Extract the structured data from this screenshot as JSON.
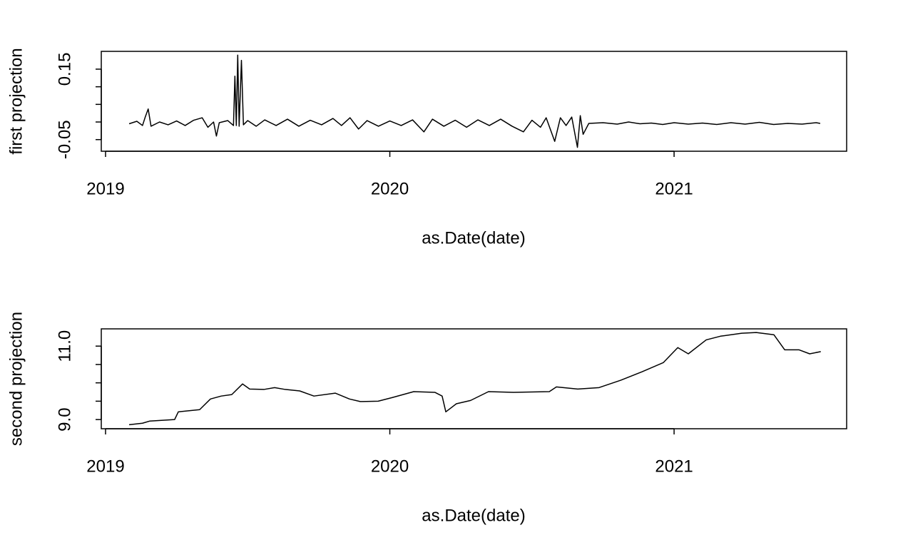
{
  "chart_data": [
    {
      "type": "line",
      "xlabel": "as.Date(date)",
      "ylabel": "first projection",
      "xlim": [
        2018.985,
        2021.607
      ],
      "xticks": [
        2019,
        2020,
        2021
      ],
      "ylim": [
        -0.083,
        0.2005
      ],
      "yticks": [
        -0.05,
        {
          "value": 0,
          "label": null
        },
        {
          "value": 0.05,
          "label": null
        },
        {
          "value": 0.1,
          "label": null
        },
        0.15
      ],
      "color": "#000000",
      "x": [
        2019.083,
        2019.11,
        2019.13,
        2019.14,
        2019.15,
        2019.16,
        2019.19,
        2019.22,
        2019.25,
        2019.28,
        2019.31,
        2019.34,
        2019.36,
        2019.38,
        2019.39,
        2019.4,
        2019.43,
        2019.45,
        2019.455,
        2019.46,
        2019.465,
        2019.47,
        2019.478,
        2019.485,
        2019.5,
        2019.53,
        2019.56,
        2019.6,
        2019.64,
        2019.68,
        2019.72,
        2019.76,
        2019.8,
        2019.83,
        2019.86,
        2019.89,
        2019.92,
        2019.96,
        2020.0,
        2020.04,
        2020.08,
        2020.12,
        2020.15,
        2020.19,
        2020.23,
        2020.27,
        2020.31,
        2020.35,
        2020.39,
        2020.43,
        2020.47,
        2020.5,
        2020.53,
        2020.55,
        2020.58,
        2020.6,
        2020.62,
        2020.64,
        2020.66,
        2020.67,
        2020.68,
        2020.7,
        2020.75,
        2020.8,
        2020.84,
        2020.88,
        2020.92,
        2020.96,
        2021.0,
        2021.05,
        2021.1,
        2021.15,
        2021.2,
        2021.25,
        2021.3,
        2021.35,
        2021.4,
        2021.45,
        2021.5,
        2021.514
      ],
      "values": [
        -0.005,
        0.002,
        -0.01,
        0.015,
        0.037,
        -0.012,
        0.0,
        -0.008,
        0.003,
        -0.01,
        0.005,
        0.012,
        -0.015,
        0.0,
        -0.04,
        -0.002,
        0.004,
        -0.01,
        0.13,
        -0.01,
        0.19,
        -0.012,
        0.175,
        -0.008,
        0.004,
        -0.012,
        0.006,
        -0.01,
        0.008,
        -0.012,
        0.005,
        -0.008,
        0.01,
        -0.01,
        0.012,
        -0.02,
        0.004,
        -0.012,
        0.003,
        -0.01,
        0.006,
        -0.028,
        0.008,
        -0.012,
        0.005,
        -0.015,
        0.006,
        -0.01,
        0.008,
        -0.012,
        -0.028,
        0.005,
        -0.015,
        0.012,
        -0.055,
        0.012,
        -0.01,
        0.014,
        -0.072,
        0.018,
        -0.035,
        -0.004,
        -0.002,
        -0.006,
        0.0,
        -0.005,
        -0.003,
        -0.007,
        -0.002,
        -0.006,
        -0.003,
        -0.007,
        -0.002,
        -0.006,
        -0.001,
        -0.007,
        -0.004,
        -0.006,
        -0.002,
        -0.004
      ]
    },
    {
      "type": "line",
      "xlabel": "as.Date(date)",
      "ylabel": "second projection",
      "xlim": [
        2018.985,
        2021.607
      ],
      "xticks": [
        2019,
        2020,
        2021
      ],
      "ylim": [
        8.75,
        11.47
      ],
      "yticks": [
        {
          "value": 9,
          "label": "9.0"
        },
        {
          "value": 9.5,
          "label": null
        },
        {
          "value": 10,
          "label": null
        },
        {
          "value": 10.5,
          "label": null
        },
        {
          "value": 11,
          "label": "11.0"
        }
      ],
      "color": "#000000",
      "x": [
        2019.083,
        2019.13,
        2019.156,
        2019.243,
        2019.256,
        2019.331,
        2019.369,
        2019.407,
        2019.444,
        2019.482,
        2019.507,
        2019.557,
        2019.595,
        2019.632,
        2019.683,
        2019.733,
        2019.808,
        2019.858,
        2019.896,
        2019.959,
        2020.009,
        2020.084,
        2020.159,
        2020.184,
        2020.197,
        2020.234,
        2020.284,
        2020.347,
        2020.435,
        2020.561,
        2020.586,
        2020.661,
        2020.736,
        2020.812,
        2020.887,
        2020.962,
        2021.013,
        2021.05,
        2021.113,
        2021.163,
        2021.238,
        2021.289,
        2021.351,
        2021.389,
        2021.439,
        2021.477,
        2021.516
      ],
      "values": [
        8.86,
        8.9,
        8.96,
        9.0,
        9.21,
        9.27,
        9.56,
        9.64,
        9.68,
        9.97,
        9.83,
        9.82,
        9.87,
        9.82,
        9.78,
        9.64,
        9.72,
        9.56,
        9.49,
        9.5,
        9.6,
        9.76,
        9.74,
        9.64,
        9.21,
        9.43,
        9.52,
        9.76,
        9.74,
        9.76,
        9.89,
        9.83,
        9.87,
        10.07,
        10.3,
        10.55,
        10.96,
        10.79,
        11.17,
        11.27,
        11.35,
        11.37,
        11.31,
        10.9,
        10.9,
        10.79,
        10.85
      ]
    }
  ]
}
